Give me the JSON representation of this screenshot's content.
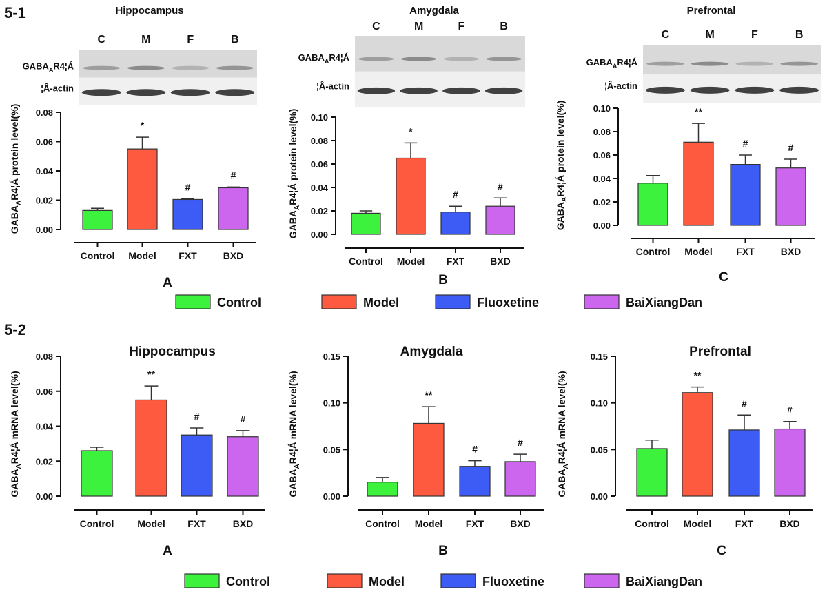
{
  "colors": {
    "Control": "#3df23d",
    "Model": "#fd5a3f",
    "Fluoxetine": "#3d5cf5",
    "BaiXiangDan": "#cc66ee"
  },
  "sections": [
    {
      "label": "5-1",
      "legend": [
        "Control",
        "Model",
        "Fluoxetine",
        "BaiXiangDan"
      ]
    },
    {
      "label": "5-2",
      "legend": [
        "Control",
        "Model",
        "Fluoxetine",
        "BaiXiangDan"
      ]
    }
  ],
  "blot": {
    "lanes": [
      "C",
      "M",
      "F",
      "B"
    ],
    "target_label_prefix": "GABA",
    "target_label_sub": "A",
    "target_label_suffix": "R4¦Á",
    "control_label": "¦Â-actin"
  },
  "chart_data": [
    {
      "type": "bar",
      "section": "5-1",
      "title": "Hippocampus",
      "panel_letter": "A",
      "categories": [
        "Control",
        "Model",
        "FXT",
        "BXD"
      ],
      "values": [
        0.013,
        0.055,
        0.0205,
        0.0285
      ],
      "errors": [
        0.0015,
        0.008,
        0.0005,
        0.0005
      ],
      "annotations": [
        "",
        "*",
        "#",
        "#"
      ],
      "ylabel_prefix": "GABA",
      "ylabel_sub": "A",
      "ylabel_suffix": "R4¦Á protein level(%)",
      "ylim": [
        0,
        0.08
      ],
      "yticks": [
        "0.00",
        "0.02",
        "0.04",
        "0.06",
        "0.08"
      ]
    },
    {
      "type": "bar",
      "section": "5-1",
      "title": "Amygdala",
      "panel_letter": "B",
      "categories": [
        "Control",
        "Model",
        "FXT",
        "BXD"
      ],
      "values": [
        0.018,
        0.065,
        0.019,
        0.024
      ],
      "errors": [
        0.002,
        0.013,
        0.005,
        0.007
      ],
      "annotations": [
        "",
        "*",
        "#",
        "#"
      ],
      "ylabel_prefix": "GABA",
      "ylabel_sub": "A",
      "ylabel_suffix": "R4¦Á protein level(%)",
      "ylim": [
        0,
        0.1
      ],
      "yticks": [
        "0.00",
        "0.02",
        "0.04",
        "0.06",
        "0.08",
        "0.10"
      ]
    },
    {
      "type": "bar",
      "section": "5-1",
      "title": "Prefrontal",
      "panel_letter": "C",
      "categories": [
        "Control",
        "Model",
        "FXT",
        "BXD"
      ],
      "values": [
        0.036,
        0.071,
        0.052,
        0.049
      ],
      "errors": [
        0.0065,
        0.016,
        0.008,
        0.0075
      ],
      "annotations": [
        "",
        "**",
        "#",
        "#"
      ],
      "ylabel_prefix": "GABA",
      "ylabel_sub": "A",
      "ylabel_suffix": "R4¦Á protein level(%)",
      "ylim": [
        0,
        0.1
      ],
      "yticks": [
        "0.00",
        "0.02",
        "0.04",
        "0.06",
        "0.08",
        "0.10"
      ]
    },
    {
      "type": "bar",
      "section": "5-2",
      "title": "Hippocampus",
      "panel_letter": "A",
      "categories": [
        "Control",
        "Model",
        "FXT",
        "BXD"
      ],
      "values": [
        0.026,
        0.055,
        0.035,
        0.034
      ],
      "errors": [
        0.002,
        0.008,
        0.004,
        0.0035
      ],
      "annotations": [
        "",
        "**",
        "#",
        "#"
      ],
      "ylabel_prefix": "GABA",
      "ylabel_sub": "A",
      "ylabel_suffix": "R4¦Á mRNA level(%)",
      "ylim": [
        0,
        0.08
      ],
      "yticks": [
        "0.00",
        "0.02",
        "0.04",
        "0.06",
        "0.08"
      ]
    },
    {
      "type": "bar",
      "section": "5-2",
      "title": "Amygdala",
      "panel_letter": "B",
      "categories": [
        "Control",
        "Model",
        "FXT",
        "BXD"
      ],
      "values": [
        0.015,
        0.078,
        0.032,
        0.037
      ],
      "errors": [
        0.005,
        0.018,
        0.006,
        0.008
      ],
      "annotations": [
        "",
        "**",
        "#",
        "#"
      ],
      "ylabel_prefix": "GABA",
      "ylabel_sub": "A",
      "ylabel_suffix": "R4¦Á mRNA level(%)",
      "ylim": [
        0,
        0.15
      ],
      "yticks": [
        "0.00",
        "0.05",
        "0.10",
        "0.15"
      ]
    },
    {
      "type": "bar",
      "section": "5-2",
      "title": "Prefrontal",
      "panel_letter": "C",
      "categories": [
        "Control",
        "Model",
        "FXT",
        "BXD"
      ],
      "values": [
        0.051,
        0.111,
        0.071,
        0.072
      ],
      "errors": [
        0.009,
        0.006,
        0.016,
        0.008
      ],
      "annotations": [
        "",
        "**",
        "#",
        "#"
      ],
      "ylabel_prefix": "GABA",
      "ylabel_sub": "A",
      "ylabel_suffix": "R4¦Á mRNA level(%)",
      "ylim": [
        0,
        0.15
      ],
      "yticks": [
        "0.00",
        "0.05",
        "0.10",
        "0.15"
      ]
    }
  ]
}
